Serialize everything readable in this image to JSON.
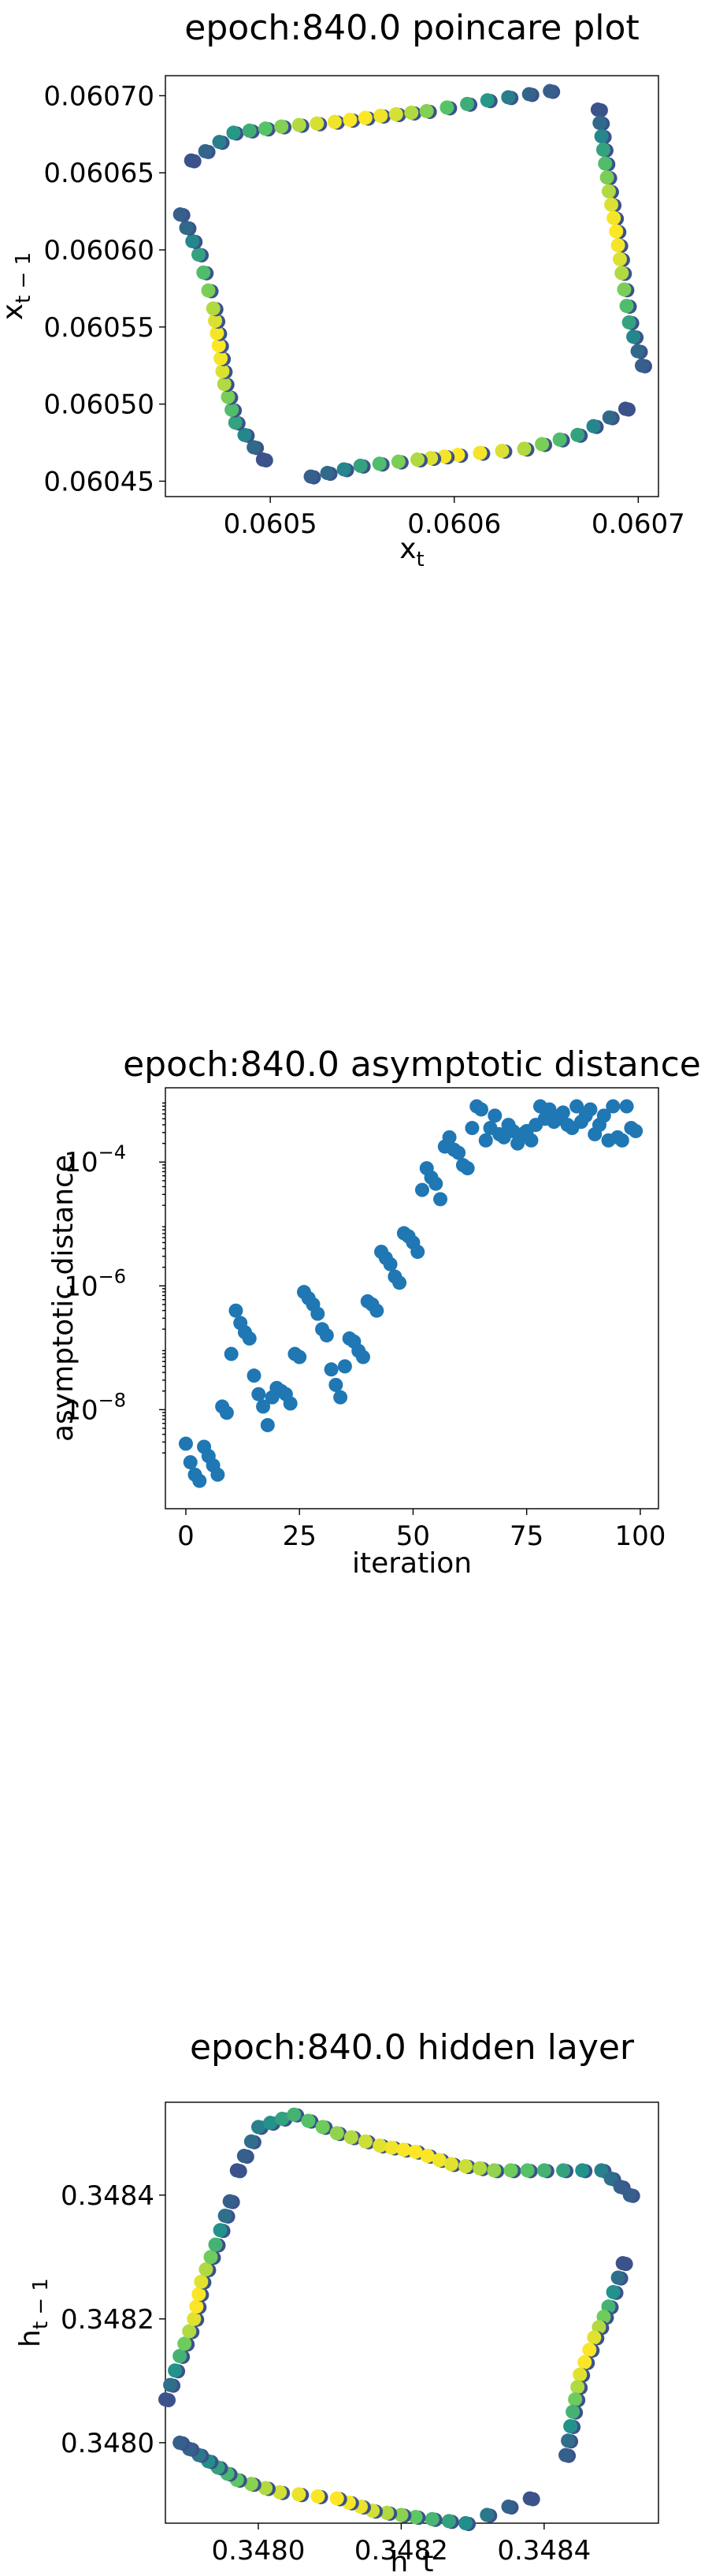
{
  "colors": {
    "viridis_stops": [
      "#440154",
      "#3b528b",
      "#21918c",
      "#5ec962",
      "#fde725"
    ],
    "scatter": "#1f77b4"
  },
  "chart_data": [
    {
      "type": "scatter",
      "title": "epoch:840.0 poincare plot",
      "xlabel": "x",
      "xlabel_sub": "t",
      "ylabel": "x",
      "ylabel_sub": "t − 1",
      "xlim": [
        0.060443,
        0.060711
      ],
      "ylim": [
        0.06044,
        0.060713
      ],
      "xticks": [
        {
          "v": 0.0605,
          "label": "0.0605"
        },
        {
          "v": 0.0606,
          "label": "0.0606"
        },
        {
          "v": 0.0607,
          "label": "0.0607"
        }
      ],
      "yticks": [
        {
          "v": 0.06045,
          "label": "0.06045"
        },
        {
          "v": 0.0605,
          "label": "0.06050"
        },
        {
          "v": 0.06055,
          "label": "0.06055"
        },
        {
          "v": 0.0606,
          "label": "0.06060"
        },
        {
          "v": 0.06065,
          "label": "0.06065"
        },
        {
          "v": 0.0607,
          "label": "0.06070"
        }
      ],
      "colormap": "viridis",
      "segments": [
        [
          [
            0.060457,
            0.060658
          ],
          [
            0.06048,
            0.060676
          ],
          [
            0.060506,
            0.06068
          ],
          [
            0.060535,
            0.060683
          ],
          [
            0.06056,
            0.060687
          ],
          [
            0.060585,
            0.06069
          ],
          [
            0.060618,
            0.060697
          ],
          [
            0.060652,
            0.060703
          ]
        ],
        [
          [
            0.060678,
            0.060691
          ],
          [
            0.060681,
            0.060665
          ],
          [
            0.060684,
            0.060638
          ],
          [
            0.060688,
            0.060612
          ],
          [
            0.060691,
            0.060585
          ],
          [
            0.060695,
            0.060553
          ],
          [
            0.060702,
            0.060525
          ]
        ],
        [
          [
            0.060693,
            0.060497
          ],
          [
            0.060667,
            0.06048
          ],
          [
            0.060638,
            0.060471
          ],
          [
            0.060602,
            0.060467
          ],
          [
            0.06058,
            0.060464
          ],
          [
            0.060549,
            0.06046
          ],
          [
            0.060522,
            0.060453
          ]
        ],
        [
          [
            0.060496,
            0.060464
          ],
          [
            0.060481,
            0.060488
          ],
          [
            0.060475,
            0.060513
          ],
          [
            0.060472,
            0.060538
          ],
          [
            0.060469,
            0.060562
          ],
          [
            0.060461,
            0.060597
          ],
          [
            0.060451,
            0.060623
          ]
        ]
      ]
    },
    {
      "type": "scatter",
      "title": "epoch:840.0 asymptotic distance",
      "xlabel": "iteration",
      "ylabel": "asymptotic distance",
      "yscale": "log",
      "xlim": [
        -4.5,
        104
      ],
      "ylim_log10": [
        -9.6,
        -2.8
      ],
      "xticks": [
        {
          "v": 0,
          "label": "0"
        },
        {
          "v": 25,
          "label": "25"
        },
        {
          "v": 50,
          "label": "50"
        },
        {
          "v": 75,
          "label": "75"
        },
        {
          "v": 100,
          "label": "100"
        }
      ],
      "yticks": [
        {
          "v": -8,
          "base": "10",
          "exp": "−8"
        },
        {
          "v": -6,
          "base": "10",
          "exp": "−6"
        },
        {
          "v": -4,
          "base": "10",
          "exp": "−4"
        }
      ],
      "x": [
        0,
        1,
        2,
        3,
        4,
        5,
        6,
        7,
        8,
        9,
        10,
        11,
        12,
        13,
        14,
        15,
        16,
        17,
        18,
        19,
        20,
        21,
        22,
        23,
        24,
        25,
        26,
        27,
        28,
        29,
        30,
        31,
        32,
        33,
        34,
        35,
        36,
        37,
        38,
        39,
        40,
        41,
        42,
        43,
        44,
        45,
        46,
        47,
        48,
        49,
        50,
        51,
        52,
        53,
        54,
        55,
        56,
        57,
        58,
        59,
        60,
        61,
        62,
        63,
        64,
        65,
        66,
        67,
        68,
        69,
        70,
        71,
        72,
        73,
        74,
        75,
        76,
        77,
        78,
        79,
        80,
        81,
        82,
        83,
        84,
        85,
        86,
        87,
        88,
        89,
        90,
        91,
        92,
        93,
        94,
        95,
        96,
        97,
        98,
        99
      ],
      "log10_y": [
        -8.55,
        -8.85,
        -9.05,
        -9.15,
        -8.6,
        -8.75,
        -8.9,
        -9.05,
        -7.95,
        -8.05,
        -7.1,
        -6.4,
        -6.6,
        -6.75,
        -6.85,
        -7.45,
        -7.75,
        -7.95,
        -8.25,
        -7.8,
        -7.65,
        -7.7,
        -7.75,
        -7.9,
        -7.1,
        -7.15,
        -6.1,
        -6.2,
        -6.3,
        -6.45,
        -6.7,
        -6.8,
        -7.35,
        -7.6,
        -7.8,
        -7.3,
        -6.85,
        -6.9,
        -7.05,
        -7.15,
        -6.25,
        -6.3,
        -6.4,
        -5.45,
        -5.55,
        -5.65,
        -5.85,
        -5.95,
        -5.15,
        -5.2,
        -5.3,
        -5.45,
        -4.45,
        -4.1,
        -4.25,
        -4.35,
        -4.6,
        -3.75,
        -3.6,
        -3.8,
        -3.85,
        -4.05,
        -4.1,
        -3.45,
        -3.1,
        -3.15,
        -3.65,
        -3.45,
        -3.25,
        -3.55,
        -3.6,
        -3.4,
        -3.5,
        -3.7,
        -3.55,
        -3.5,
        -3.65,
        -3.4,
        -3.1,
        -3.3,
        -3.15,
        -3.35,
        -3.3,
        -3.2,
        -3.4,
        -3.45,
        -3.1,
        -3.35,
        -3.25,
        -3.15,
        -3.55,
        -3.4,
        -3.25,
        -3.65,
        -3.1,
        -3.6,
        -3.65,
        -3.1,
        -3.45,
        -3.5
      ]
    },
    {
      "type": "scatter",
      "title": "epoch:840.0 hidden layer",
      "xlabel": "h_t",
      "ylabel": "h",
      "ylabel_sub": "t − 1",
      "xlim": [
        0.34787,
        0.34856
      ],
      "ylim": [
        0.34787,
        0.34855
      ],
      "xticks": [
        {
          "v": 0.348,
          "label": "0.3480"
        },
        {
          "v": 0.3482,
          "label": "0.3482"
        },
        {
          "v": 0.3484,
          "label": "0.3484"
        }
      ],
      "yticks": [
        {
          "v": 0.348,
          "label": "0.3480"
        },
        {
          "v": 0.3482,
          "label": "0.3482"
        },
        {
          "v": 0.3484,
          "label": "0.3484"
        }
      ],
      "colormap": "viridis",
      "segments": [
        [
          [
            0.34787,
            0.34807
          ],
          [
            0.34789,
            0.34814
          ],
          [
            0.34791,
            0.3482
          ],
          [
            0.34792,
            0.34826
          ],
          [
            0.34794,
            0.34832
          ],
          [
            0.34796,
            0.34839
          ]
        ],
        [
          [
            0.34797,
            0.34844
          ],
          [
            0.348,
            0.34851
          ],
          [
            0.34805,
            0.34853
          ],
          [
            0.34811,
            0.3485
          ],
          [
            0.34817,
            0.34848
          ],
          [
            0.34822,
            0.34847
          ],
          [
            0.34827,
            0.34845
          ],
          [
            0.34833,
            0.34844
          ],
          [
            0.3484,
            0.34844
          ],
          [
            0.34848,
            0.34844
          ],
          [
            0.34852,
            0.3484
          ]
        ],
        [
          [
            0.34851,
            0.34829
          ],
          [
            0.34849,
            0.34822
          ],
          [
            0.34847,
            0.34817
          ],
          [
            0.34845,
            0.34811
          ],
          [
            0.34844,
            0.34805
          ],
          [
            0.34843,
            0.34798
          ]
        ],
        [
          [
            0.34838,
            0.34791
          ],
          [
            0.34829,
            0.34787
          ],
          [
            0.34822,
            0.34788
          ],
          [
            0.34816,
            0.34789
          ],
          [
            0.34811,
            0.34791
          ],
          [
            0.34803,
            0.34792
          ],
          [
            0.34797,
            0.34794
          ],
          [
            0.34793,
            0.34797
          ],
          [
            0.34789,
            0.348
          ]
        ]
      ]
    }
  ]
}
